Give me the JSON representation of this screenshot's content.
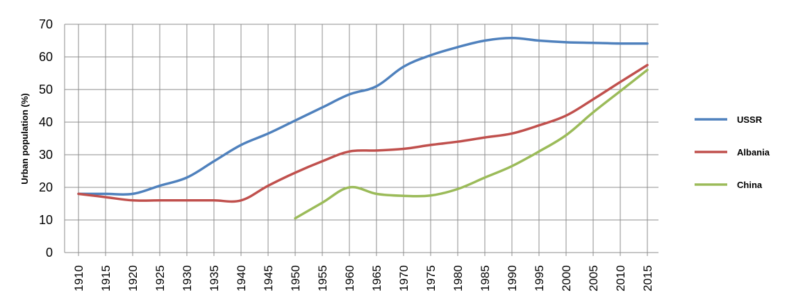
{
  "chart_data": {
    "type": "line",
    "title": "",
    "xlabel": "",
    "ylabel": "Urban population (%)",
    "ylim": [
      0,
      70
    ],
    "yticks": [
      0,
      10,
      20,
      30,
      40,
      50,
      60,
      70
    ],
    "categories": [
      "1910",
      "1915",
      "1920",
      "1925",
      "1930",
      "1935",
      "1940",
      "1945",
      "1950",
      "1955",
      "1960",
      "1965",
      "1970",
      "1975",
      "1980",
      "1985",
      "1990",
      "1995",
      "2000",
      "2005",
      "2010",
      "2015"
    ],
    "grid": {
      "horizontal": true,
      "vertical": true
    },
    "legend_position": "right",
    "series": [
      {
        "name": "USSR",
        "color": "#4F81BD",
        "values": [
          18,
          18,
          18,
          20.5,
          23,
          28,
          33,
          36.5,
          40.5,
          44.5,
          48.5,
          51,
          57,
          60.5,
          63,
          65,
          65.8,
          65,
          64.5,
          64.3,
          64.1,
          64.1
        ]
      },
      {
        "name": "Albania",
        "color": "#C0504D",
        "values": [
          18,
          17,
          16,
          16,
          16,
          16,
          16,
          20.5,
          24.5,
          28,
          31,
          31.3,
          31.8,
          33,
          34,
          35.3,
          36.5,
          39,
          42,
          47,
          52.3,
          57.5
        ]
      },
      {
        "name": "China",
        "color": "#9BBB59",
        "values": [
          null,
          null,
          null,
          null,
          null,
          null,
          null,
          null,
          10.5,
          15.3,
          20,
          18,
          17.4,
          17.5,
          19.5,
          23,
          26.5,
          31,
          36,
          43,
          49.5,
          56
        ]
      }
    ]
  }
}
